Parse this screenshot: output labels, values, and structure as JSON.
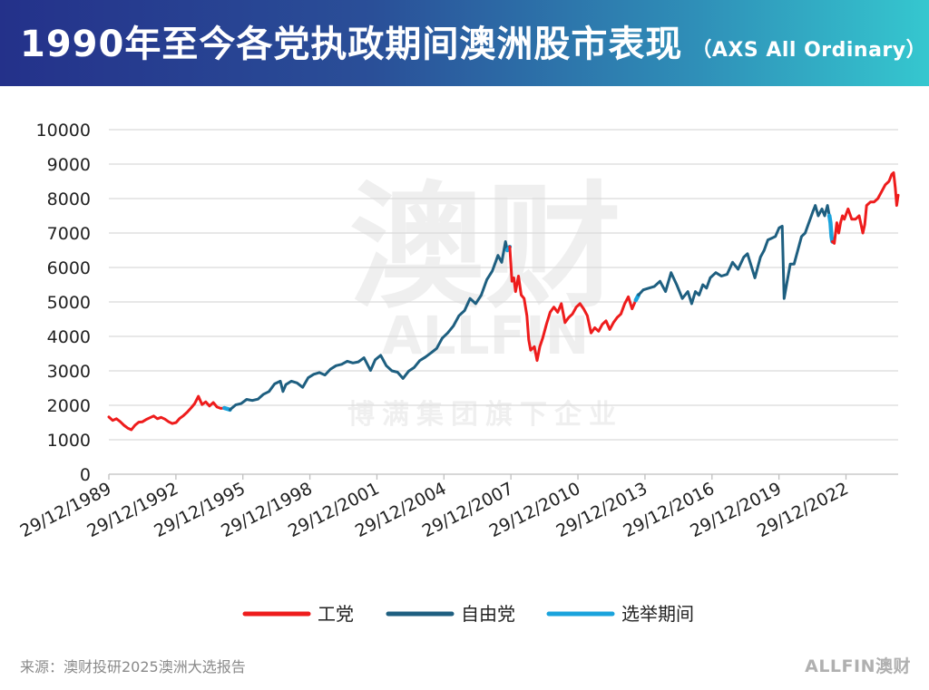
{
  "header": {
    "title": "1990年至今各党执政期间澳洲股市表现",
    "subtitle": "（AXS All Ordinary）"
  },
  "footer": {
    "source": "来源：澳财投研2025澳洲大选报告",
    "brand": "ALLFIN澳财"
  },
  "watermark": {
    "big": "澳财",
    "mid": "ALLFIN",
    "small": "博满集团旗下企业"
  },
  "colors": {
    "labor": "#ee1c1c",
    "liberal": "#1e5f80",
    "election": "#1aa3dc",
    "grid": "#d9d9d9",
    "axis_text": "#222222"
  },
  "chart_data": {
    "type": "line",
    "title": "1990年至今各党执政期间澳洲股市表现",
    "subtitle": "（AXS All Ordinary）",
    "xlabel": "",
    "ylabel": "",
    "ylim": [
      0,
      10000
    ],
    "yticks": [
      0,
      1000,
      2000,
      3000,
      4000,
      5000,
      6000,
      7000,
      8000,
      9000,
      10000
    ],
    "xlim": [
      "1989-12-29",
      "2025-04-30"
    ],
    "xticks": [
      "29/12/1989",
      "29/12/1992",
      "29/12/1995",
      "29/12/1998",
      "29/12/2001",
      "29/12/2004",
      "29/12/2007",
      "29/12/2010",
      "29/12/2013",
      "29/12/2016",
      "29/12/2019",
      "29/12/2022"
    ],
    "grid": true,
    "legend_position": "bottom",
    "legend": [
      {
        "name": "工党",
        "color": "#ee1c1c"
      },
      {
        "name": "自由党",
        "color": "#1e5f80"
      },
      {
        "name": "选举期间",
        "color": "#1aa3dc"
      }
    ],
    "series": [
      {
        "name": "工党",
        "segment": 1,
        "points": [
          [
            "1989-12-29",
            1660
          ],
          [
            "1990-03-01",
            1560
          ],
          [
            "1990-05-01",
            1610
          ],
          [
            "1990-07-01",
            1530
          ],
          [
            "1990-09-01",
            1420
          ],
          [
            "1990-11-01",
            1340
          ],
          [
            "1991-01-01",
            1290
          ],
          [
            "1991-03-01",
            1420
          ],
          [
            "1991-05-01",
            1510
          ],
          [
            "1991-07-01",
            1520
          ],
          [
            "1991-09-01",
            1590
          ],
          [
            "1991-11-01",
            1640
          ],
          [
            "1992-01-01",
            1690
          ],
          [
            "1992-03-01",
            1610
          ],
          [
            "1992-05-01",
            1650
          ],
          [
            "1992-07-01",
            1600
          ],
          [
            "1992-09-01",
            1520
          ],
          [
            "1992-11-01",
            1470
          ],
          [
            "1993-01-01",
            1500
          ],
          [
            "1993-03-01",
            1620
          ],
          [
            "1993-05-01",
            1700
          ],
          [
            "1993-07-01",
            1800
          ],
          [
            "1993-09-01",
            1920
          ],
          [
            "1993-11-01",
            2050
          ],
          [
            "1994-01-01",
            2260
          ],
          [
            "1994-03-01",
            2020
          ],
          [
            "1994-05-01",
            2100
          ],
          [
            "1994-07-01",
            1980
          ],
          [
            "1994-09-01",
            2080
          ],
          [
            "1994-11-01",
            1950
          ],
          [
            "1995-01-01",
            1910
          ],
          [
            "1995-03-01",
            1920
          ]
        ]
      },
      {
        "name": "选举期间",
        "segment": 1,
        "points": [
          [
            "1995-03-01",
            1920
          ],
          [
            "1995-06-01",
            1870
          ]
        ]
      },
      {
        "name": "自由党",
        "segment": 1,
        "points": [
          [
            "1995-06-01",
            1870
          ],
          [
            "1995-09-01",
            2010
          ],
          [
            "1995-12-01",
            2050
          ],
          [
            "1996-03-01",
            2170
          ],
          [
            "1996-06-01",
            2140
          ],
          [
            "1996-09-01",
            2180
          ],
          [
            "1996-12-01",
            2320
          ],
          [
            "1997-03-01",
            2400
          ],
          [
            "1997-06-01",
            2620
          ],
          [
            "1997-09-01",
            2700
          ],
          [
            "1997-10-15",
            2400
          ],
          [
            "1997-12-01",
            2600
          ],
          [
            "1998-03-01",
            2700
          ],
          [
            "1998-06-01",
            2650
          ],
          [
            "1998-09-01",
            2520
          ],
          [
            "1998-12-01",
            2800
          ],
          [
            "1999-03-01",
            2900
          ],
          [
            "1999-06-01",
            2950
          ],
          [
            "1999-09-01",
            2880
          ],
          [
            "1999-12-01",
            3050
          ],
          [
            "2000-03-01",
            3150
          ],
          [
            "2000-06-01",
            3190
          ],
          [
            "2000-09-01",
            3280
          ],
          [
            "2000-12-01",
            3230
          ],
          [
            "2001-03-01",
            3260
          ],
          [
            "2001-06-01",
            3380
          ],
          [
            "2001-09-15",
            3010
          ],
          [
            "2001-12-01",
            3320
          ],
          [
            "2002-03-01",
            3450
          ],
          [
            "2002-06-01",
            3150
          ],
          [
            "2002-09-01",
            3000
          ],
          [
            "2002-12-01",
            2960
          ],
          [
            "2003-03-01",
            2780
          ],
          [
            "2003-06-01",
            2990
          ],
          [
            "2003-09-01",
            3100
          ],
          [
            "2003-12-01",
            3300
          ],
          [
            "2004-03-01",
            3400
          ],
          [
            "2004-06-01",
            3520
          ],
          [
            "2004-09-01",
            3650
          ],
          [
            "2004-12-01",
            3950
          ],
          [
            "2005-03-01",
            4100
          ],
          [
            "2005-06-01",
            4300
          ],
          [
            "2005-09-01",
            4600
          ],
          [
            "2005-12-01",
            4750
          ],
          [
            "2006-03-01",
            5100
          ],
          [
            "2006-06-01",
            4950
          ],
          [
            "2006-09-01",
            5200
          ],
          [
            "2006-12-01",
            5650
          ],
          [
            "2007-03-01",
            5900
          ],
          [
            "2007-06-01",
            6350
          ],
          [
            "2007-08-01",
            6150
          ],
          [
            "2007-10-01",
            6750
          ],
          [
            "2007-11-01",
            6500
          ]
        ]
      },
      {
        "name": "选举期间",
        "segment": 2,
        "points": [
          [
            "2007-11-01",
            6500
          ],
          [
            "2007-12-10",
            6600
          ]
        ]
      },
      {
        "name": "工党",
        "segment": 2,
        "points": [
          [
            "2007-12-10",
            6600
          ],
          [
            "2008-01-15",
            5600
          ],
          [
            "2008-02-15",
            5700
          ],
          [
            "2008-03-15",
            5300
          ],
          [
            "2008-05-01",
            5750
          ],
          [
            "2008-06-15",
            5200
          ],
          [
            "2008-08-01",
            5100
          ],
          [
            "2008-09-15",
            4600
          ],
          [
            "2008-10-15",
            3900
          ],
          [
            "2008-11-15",
            3600
          ],
          [
            "2009-01-15",
            3700
          ],
          [
            "2009-03-01",
            3300
          ],
          [
            "2009-04-15",
            3700
          ],
          [
            "2009-06-01",
            3950
          ],
          [
            "2009-08-01",
            4350
          ],
          [
            "2009-10-01",
            4700
          ],
          [
            "2009-12-01",
            4850
          ],
          [
            "2010-02-01",
            4700
          ],
          [
            "2010-04-01",
            4950
          ],
          [
            "2010-06-01",
            4400
          ],
          [
            "2010-08-01",
            4550
          ],
          [
            "2010-10-01",
            4650
          ],
          [
            "2010-12-01",
            4850
          ],
          [
            "2011-02-01",
            4950
          ],
          [
            "2011-04-01",
            4800
          ],
          [
            "2011-06-01",
            4600
          ],
          [
            "2011-08-01",
            4100
          ],
          [
            "2011-10-01",
            4250
          ],
          [
            "2011-12-01",
            4150
          ],
          [
            "2012-02-01",
            4350
          ],
          [
            "2012-04-01",
            4450
          ],
          [
            "2012-06-01",
            4200
          ],
          [
            "2012-08-01",
            4400
          ],
          [
            "2012-10-01",
            4550
          ],
          [
            "2012-12-01",
            4650
          ],
          [
            "2013-02-01",
            4950
          ],
          [
            "2013-04-01",
            5150
          ],
          [
            "2013-06-01",
            4800
          ],
          [
            "2013-08-01",
            5050
          ]
        ]
      },
      {
        "name": "选举期间",
        "segment": 3,
        "points": [
          [
            "2013-08-01",
            5050
          ],
          [
            "2013-09-15",
            5200
          ]
        ]
      },
      {
        "name": "自由党",
        "segment": 2,
        "points": [
          [
            "2013-09-15",
            5200
          ],
          [
            "2013-12-01",
            5350
          ],
          [
            "2014-03-01",
            5400
          ],
          [
            "2014-06-01",
            5450
          ],
          [
            "2014-09-01",
            5600
          ],
          [
            "2014-12-01",
            5300
          ],
          [
            "2015-03-01",
            5850
          ],
          [
            "2015-06-01",
            5500
          ],
          [
            "2015-09-01",
            5100
          ],
          [
            "2015-12-01",
            5300
          ],
          [
            "2016-02-01",
            4950
          ],
          [
            "2016-04-01",
            5300
          ],
          [
            "2016-06-01",
            5200
          ],
          [
            "2016-08-01",
            5500
          ],
          [
            "2016-10-01",
            5400
          ],
          [
            "2016-12-01",
            5700
          ],
          [
            "2017-03-01",
            5850
          ],
          [
            "2017-06-01",
            5750
          ],
          [
            "2017-09-01",
            5800
          ],
          [
            "2017-12-01",
            6150
          ],
          [
            "2018-03-01",
            5950
          ],
          [
            "2018-06-01",
            6300
          ],
          [
            "2018-08-01",
            6400
          ],
          [
            "2018-10-01",
            6050
          ],
          [
            "2018-12-01",
            5700
          ],
          [
            "2019-03-01",
            6300
          ],
          [
            "2019-05-01",
            6500
          ],
          [
            "2019-07-01",
            6800
          ],
          [
            "2019-09-01",
            6850
          ],
          [
            "2019-11-01",
            6900
          ],
          [
            "2020-01-01",
            7150
          ],
          [
            "2020-02-20",
            7200
          ],
          [
            "2020-03-23",
            5100
          ],
          [
            "2020-05-01",
            5500
          ],
          [
            "2020-07-01",
            6100
          ],
          [
            "2020-09-01",
            6100
          ],
          [
            "2020-11-01",
            6500
          ],
          [
            "2021-01-01",
            6900
          ],
          [
            "2021-03-01",
            7000
          ],
          [
            "2021-05-01",
            7300
          ],
          [
            "2021-07-01",
            7600
          ],
          [
            "2021-08-15",
            7800
          ],
          [
            "2021-10-01",
            7500
          ],
          [
            "2021-12-01",
            7700
          ],
          [
            "2022-01-15",
            7500
          ],
          [
            "2022-03-01",
            7800
          ],
          [
            "2022-04-01",
            7500
          ]
        ]
      },
      {
        "name": "选举期间",
        "segment": 4,
        "points": [
          [
            "2022-04-01",
            7500
          ],
          [
            "2022-04-20",
            7300
          ],
          [
            "2022-05-05",
            6900
          ],
          [
            "2022-05-21",
            6750
          ]
        ]
      },
      {
        "name": "工党",
        "segment": 3,
        "points": [
          [
            "2022-05-21",
            6750
          ],
          [
            "2022-06-20",
            6700
          ],
          [
            "2022-08-01",
            7300
          ],
          [
            "2022-09-01",
            7000
          ],
          [
            "2022-10-01",
            7300
          ],
          [
            "2022-11-01",
            7500
          ],
          [
            "2022-12-01",
            7400
          ],
          [
            "2023-02-01",
            7700
          ],
          [
            "2023-04-01",
            7400
          ],
          [
            "2023-06-01",
            7400
          ],
          [
            "2023-08-01",
            7500
          ],
          [
            "2023-10-01",
            7000
          ],
          [
            "2023-11-01",
            7250
          ],
          [
            "2023-12-01",
            7800
          ],
          [
            "2024-02-01",
            7900
          ],
          [
            "2024-04-01",
            7900
          ],
          [
            "2024-06-01",
            8000
          ],
          [
            "2024-08-01",
            8200
          ],
          [
            "2024-10-01",
            8400
          ],
          [
            "2024-12-01",
            8500
          ],
          [
            "2025-01-15",
            8700
          ],
          [
            "2025-02-15",
            8750
          ],
          [
            "2025-03-15",
            8300
          ],
          [
            "2025-04-07",
            7800
          ],
          [
            "2025-04-30",
            8100
          ]
        ]
      }
    ]
  }
}
